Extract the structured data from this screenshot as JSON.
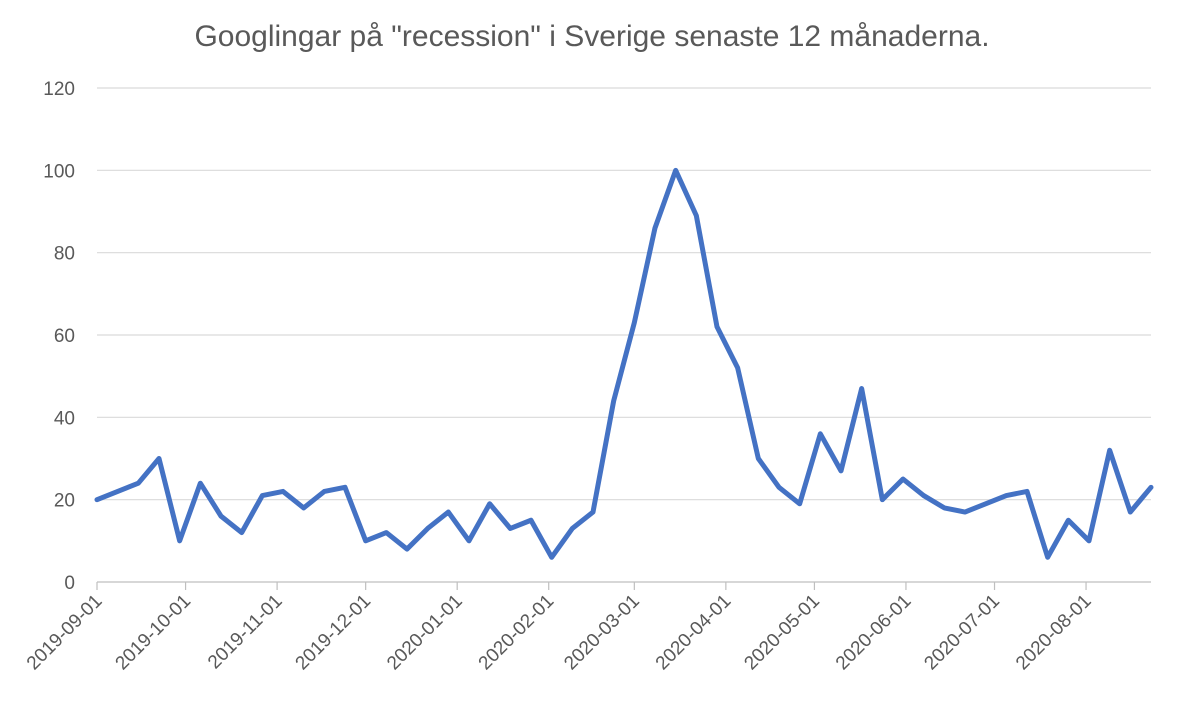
{
  "chart_data": {
    "type": "line",
    "title": "Googlingar på \"recession\" i Sverige senaste 12 månaderna.",
    "xlabel": "",
    "ylabel": "",
    "ylim": [
      0,
      120
    ],
    "yticks": [
      "0",
      "20",
      "40",
      "60",
      "80",
      "100",
      "120"
    ],
    "x_tick_labels": [
      "2019-09-01",
      "2019-10-01",
      "2019-11-01",
      "2019-12-01",
      "2020-01-01",
      "2020-02-01",
      "2020-03-01",
      "2020-04-01",
      "2020-05-01",
      "2020-06-01",
      "2020-07-01",
      "2020-08-01"
    ],
    "x": [
      "2019-09-01",
      "2019-09-08",
      "2019-09-15",
      "2019-09-22",
      "2019-09-29",
      "2019-10-06",
      "2019-10-13",
      "2019-10-20",
      "2019-10-27",
      "2019-11-03",
      "2019-11-10",
      "2019-11-17",
      "2019-11-24",
      "2019-12-01",
      "2019-12-08",
      "2019-12-15",
      "2019-12-22",
      "2019-12-29",
      "2020-01-05",
      "2020-01-12",
      "2020-01-19",
      "2020-01-26",
      "2020-02-02",
      "2020-02-09",
      "2020-02-16",
      "2020-02-23",
      "2020-03-01",
      "2020-03-08",
      "2020-03-15",
      "2020-03-22",
      "2020-03-29",
      "2020-04-05",
      "2020-04-12",
      "2020-04-19",
      "2020-04-26",
      "2020-05-03",
      "2020-05-10",
      "2020-05-17",
      "2020-05-24",
      "2020-05-31",
      "2020-06-07",
      "2020-06-14",
      "2020-06-21",
      "2020-06-28",
      "2020-07-05",
      "2020-07-12",
      "2020-07-19",
      "2020-07-26",
      "2020-08-02",
      "2020-08-09",
      "2020-08-16",
      "2020-08-23"
    ],
    "series": [
      {
        "values": [
          20,
          22,
          24,
          30,
          10,
          24,
          16,
          12,
          21,
          22,
          18,
          22,
          23,
          10,
          12,
          8,
          13,
          17,
          10,
          19,
          13,
          15,
          6,
          13,
          17,
          44,
          63,
          86,
          100,
          89,
          62,
          52,
          30,
          23,
          19,
          36,
          27,
          47,
          20,
          25,
          21,
          18,
          17,
          19,
          21,
          22,
          6,
          15,
          10,
          32,
          17,
          23
        ]
      }
    ],
    "grid": true,
    "legend": "none",
    "colors": {
      "line": "#4472c4",
      "grid": "#d9d9d9",
      "text": "#595959"
    }
  }
}
